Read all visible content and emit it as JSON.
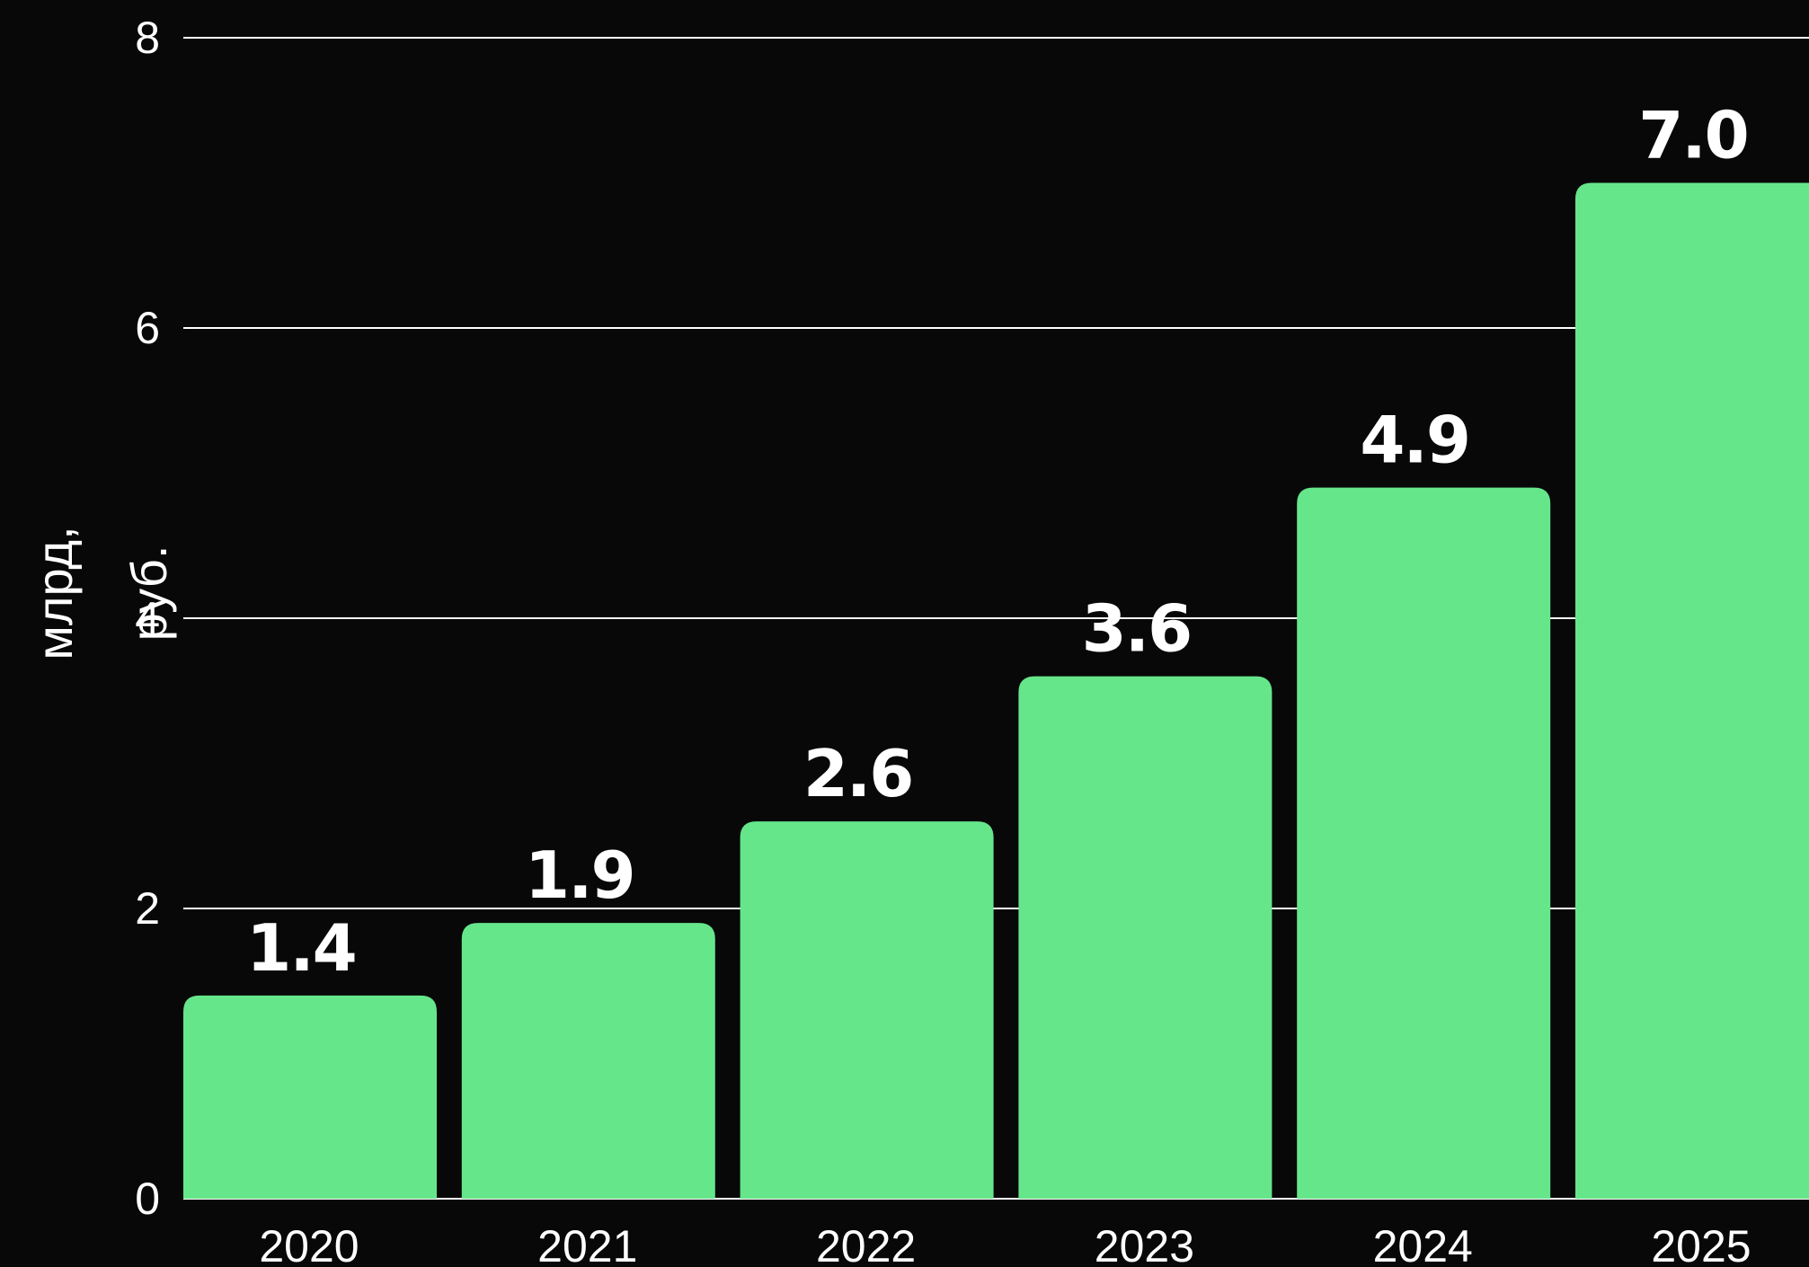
{
  "chart_data": {
    "type": "bar",
    "title": "",
    "xlabel": "",
    "ylabel_lines": [
      "млрд,",
      "руб."
    ],
    "categories": [
      "2020",
      "2021",
      "2022",
      "2023",
      "2024",
      "2025"
    ],
    "values": [
      1.4,
      1.9,
      2.6,
      3.6,
      4.9,
      7.0
    ],
    "value_labels": [
      "1.4",
      "1.9",
      "2.6",
      "3.6",
      "4.9",
      "7.0"
    ],
    "ylim": [
      0,
      8
    ],
    "yticks": [
      "0",
      "2",
      "4",
      "6",
      "8"
    ],
    "grid": true,
    "legend": "none",
    "colors": {
      "background": "#080808",
      "bar": "#66E68B",
      "text": "#ffffff",
      "grid": "#ffffff"
    }
  }
}
